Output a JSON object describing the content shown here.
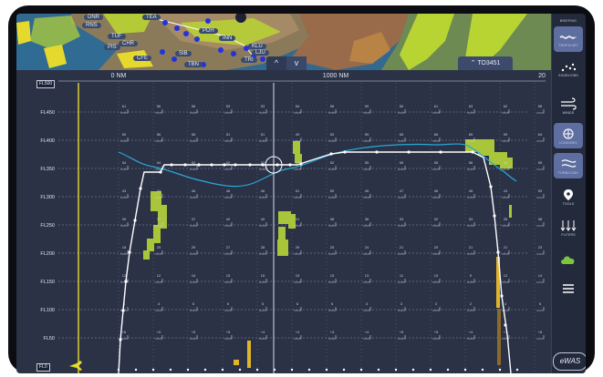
{
  "map": {
    "places": [
      "DNR",
      "RNS",
      "TUF",
      "CHR",
      "PIS",
      "CFE",
      "PDH",
      "INN",
      "KLU",
      "LJU",
      "TRI",
      "TEA",
      "SIB",
      "TBN"
    ],
    "collapse_label": "^",
    "expand_label": "v",
    "flight_chip": "TO3451"
  },
  "profile": {
    "top_level_box": "FL500",
    "bottom_level_box": "FL0",
    "distance_labels": [
      "0 NM",
      "1000 NM",
      "20"
    ],
    "levels": [
      "FL450",
      "FL400",
      "FL350",
      "FL300",
      "FL250",
      "FL200",
      "FL150",
      "FL100",
      "FL50"
    ],
    "temperatures": [
      [
        "61",
        "56",
        "56",
        "53",
        "53",
        "54",
        "56",
        "59",
        "60",
        "61",
        "63",
        "62",
        "58"
      ],
      [
        "60",
        "56",
        "56",
        "51",
        "51",
        "49",
        "53",
        "59",
        "65",
        "66",
        "65",
        "59",
        "64"
      ],
      [
        "54",
        "54",
        "52",
        "52",
        "52",
        "50",
        "52",
        "55",
        "55",
        "55",
        "56",
        "55",
        "55"
      ],
      [
        "43",
        "44",
        "46",
        "46",
        "46",
        "51",
        "50",
        "45",
        "47",
        "46",
        "45",
        "43",
        "53"
      ],
      [
        "39",
        "37",
        "37",
        "40",
        "40",
        "41",
        "38",
        "36",
        "33",
        "32",
        "33",
        "35",
        "38"
      ],
      [
        "18",
        "25",
        "29",
        "27",
        "28",
        "29",
        "25",
        "24",
        "21",
        "20",
        "21",
        "21",
        "23"
      ],
      [
        "12",
        "12",
        "16",
        "15",
        "15",
        "15",
        "15",
        "13",
        "11",
        "10",
        "9",
        "12",
        "14"
      ],
      [
        "4",
        "4",
        "5",
        "5",
        "5",
        "6",
        "5",
        "3",
        "3",
        "3",
        "2",
        "4",
        "5"
      ],
      [
        "+6",
        "+5",
        "+5",
        "+5",
        "+4",
        "+4",
        "+4",
        "+4",
        "+5",
        "+5",
        "+4",
        "+4",
        "+6"
      ]
    ]
  },
  "sidebar": [
    {
      "name": "briefing",
      "label": "BRIEFING"
    },
    {
      "name": "tropo",
      "label": "TROPO/JET"
    },
    {
      "name": "significant",
      "label": "SIGWX/OBS"
    },
    {
      "name": "winds",
      "label": "WINDS"
    },
    {
      "name": "icing",
      "label": "ICING/SEV"
    },
    {
      "name": "turbulence",
      "label": "TURB/CONV"
    },
    {
      "name": "tools",
      "label": "TOOLS"
    },
    {
      "name": "filters",
      "label": "FILTERS"
    },
    {
      "name": "weather",
      "label": ""
    },
    {
      "name": "menu",
      "label": ""
    }
  ],
  "logo": "eWAS",
  "colors": {
    "background": "#2b3246",
    "route": "#ffffff",
    "tropopause": "#29a8d8",
    "turbulence": "#a9c53a",
    "icing": "#e0b52a",
    "sidebar_active": "#5e6ea0"
  }
}
